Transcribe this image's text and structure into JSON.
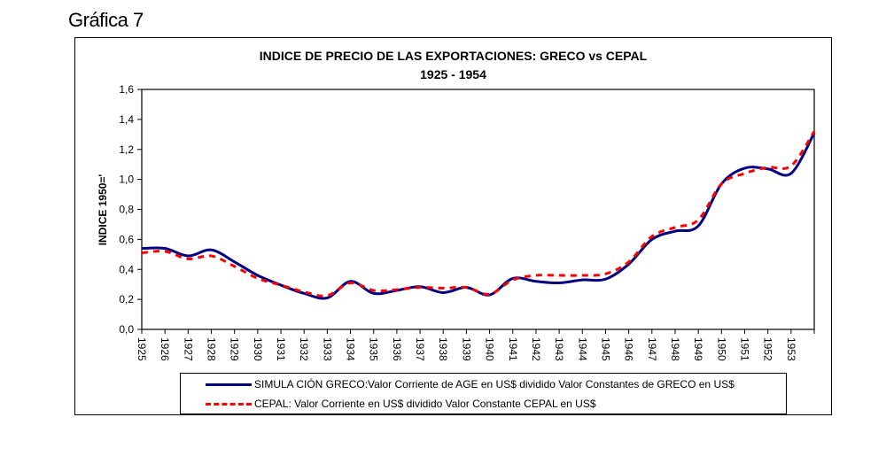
{
  "heading": "Gráfica 7",
  "chart_data": {
    "type": "line",
    "title": "INDICE DE PRECIO DE LAS EXPORTACIONES: GRECO vs CEPAL",
    "subtitle": "1925 - 1954",
    "xlabel": "",
    "ylabel": "INDICE 1950='",
    "ylim": [
      0.0,
      1.6
    ],
    "yticks": [
      "0,0",
      "0,2",
      "0,4",
      "0,6",
      "0,8",
      "1,0",
      "1,2",
      "1,4",
      "1,6"
    ],
    "x": [
      1925,
      1926,
      1927,
      1928,
      1929,
      1930,
      1931,
      1932,
      1933,
      1934,
      1935,
      1936,
      1937,
      1938,
      1939,
      1940,
      1941,
      1942,
      1943,
      1944,
      1945,
      1946,
      1947,
      1948,
      1949,
      1950,
      1951,
      1952,
      1953,
      1954
    ],
    "xtick_labels": [
      "1925",
      "1926",
      "1927",
      "1928",
      "1929",
      "1930",
      "1931",
      "1932",
      "1933",
      "1934",
      "1935",
      "1936",
      "1937",
      "1938",
      "1939",
      "1940",
      "1941",
      "1942",
      "1943",
      "1944",
      "1945",
      "1946",
      "1947",
      "1948",
      "1949",
      "1950",
      "1951",
      "1952",
      "1953"
    ],
    "grid": false,
    "legend_position": "bottom",
    "series": [
      {
        "name": "SIMULA CIÓN GRECO:Valor Corriente de AGE en US$ dividido Valor Constantes de GRECO en US$",
        "style": "solid",
        "color": "#000080",
        "values": [
          0.54,
          0.54,
          0.49,
          0.53,
          0.45,
          0.36,
          0.295,
          0.24,
          0.21,
          0.32,
          0.24,
          0.26,
          0.285,
          0.245,
          0.28,
          0.23,
          0.34,
          0.32,
          0.31,
          0.33,
          0.335,
          0.435,
          0.6,
          0.655,
          0.69,
          0.97,
          1.075,
          1.07,
          1.04,
          1.31
        ]
      },
      {
        "name": "CEPAL: Valor Corriente  en US$ dividido Valor Constante CEPAL en US$",
        "style": "dashed",
        "color": "#ff0000",
        "values": [
          0.51,
          0.52,
          0.47,
          0.49,
          0.42,
          0.34,
          0.295,
          0.25,
          0.225,
          0.31,
          0.26,
          0.265,
          0.28,
          0.275,
          0.28,
          0.235,
          0.33,
          0.36,
          0.36,
          0.36,
          0.37,
          0.45,
          0.62,
          0.68,
          0.73,
          0.97,
          1.04,
          1.08,
          1.09,
          1.32
        ]
      }
    ]
  }
}
